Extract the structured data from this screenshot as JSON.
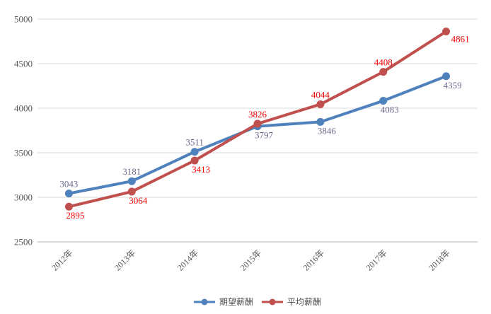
{
  "chart_data": {
    "type": "line",
    "title": "",
    "categories": [
      "2012年",
      "2013年",
      "2014年",
      "2015年",
      "2016年",
      "2017年",
      "2018年"
    ],
    "series": [
      {
        "name": "期望薪酬",
        "values": [
          3043,
          3181,
          3511,
          3797,
          3846,
          4083,
          4359
        ],
        "color": "#4f81bd",
        "label_color": "#6c6c91",
        "label_positions": [
          "above",
          "above",
          "above",
          "below",
          "below",
          "below",
          "below"
        ]
      },
      {
        "name": "平均薪酬",
        "values": [
          2895,
          3064,
          3413,
          3826,
          4044,
          4408,
          4861
        ],
        "color": "#c0504d",
        "label_color": "#f40000",
        "label_positions": [
          "below",
          "below",
          "below",
          "above",
          "above",
          "above",
          "right"
        ]
      }
    ],
    "ylim": [
      2500,
      5000
    ],
    "ytick_step": 500,
    "yticks": [
      "2500",
      "3000",
      "3500",
      "4000",
      "4500",
      "5000"
    ],
    "grid": true,
    "legend_position": "bottom",
    "axis_colors": {
      "gridline": "#d9d9d9",
      "axis_line": "#b3b3b3",
      "tick_label": "#595959"
    }
  }
}
